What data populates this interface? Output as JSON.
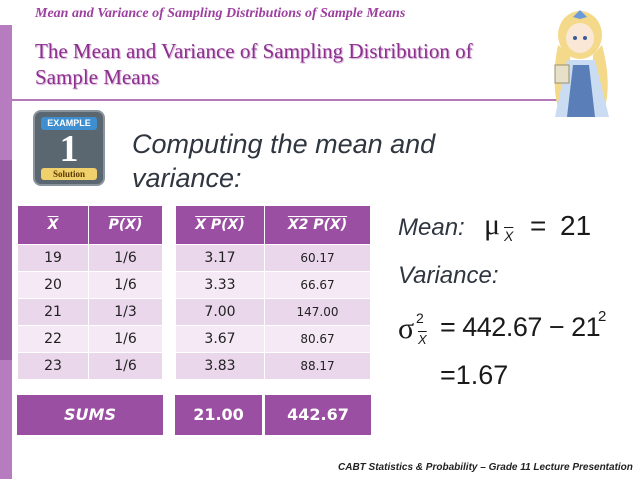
{
  "header": {
    "breadcrumb": "Mean and Variance of Sampling Distributions of Sample Means",
    "title": "The Mean and Variance of Sampling Distribution of Sample Means"
  },
  "badge": {
    "top": "EXAMPLE",
    "number": "1",
    "bottom": "Solution"
  },
  "subtitle": "Computing the mean and variance:",
  "table": {
    "headers": [
      "X",
      "P(X)",
      "X P(X)",
      "X2 P(X)"
    ],
    "rows": [
      [
        "19",
        "1/6",
        "3.17",
        "60.17"
      ],
      [
        "20",
        "1/6",
        "3.33",
        "66.67"
      ],
      [
        "21",
        "1/3",
        "7.00",
        "147.00"
      ],
      [
        "22",
        "1/6",
        "3.67",
        "80.67"
      ],
      [
        "23",
        "1/6",
        "3.83",
        "88.17"
      ]
    ],
    "sums_label": "SUMS",
    "sums": [
      "21.00",
      "442.67"
    ]
  },
  "formulas": {
    "mean_label": "Mean:",
    "mean_symbol": "μ",
    "mean_subscript": "X",
    "mean_equals": "=",
    "mean_value": "21",
    "variance_label": "Variance:",
    "variance_symbol": "σ",
    "variance_superscript": "2",
    "variance_subscript": "X",
    "variance_expr": "= 442.67 − 21",
    "variance_exponent": "2",
    "variance_result": "=1.67"
  },
  "footer": "CABT Statistics & Probability – Grade 11 Lecture Presentation",
  "colors": {
    "accent": "#9a4fa2",
    "title": "#8e2f8e",
    "row_light": "#ead7ec",
    "sidebar": "#b77bbf"
  }
}
